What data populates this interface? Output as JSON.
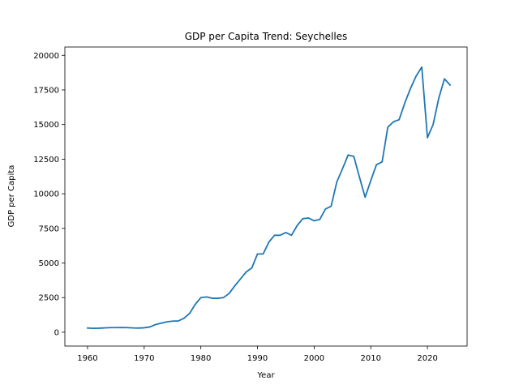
{
  "chart_data": {
    "type": "line",
    "title": "GDP per Capita Trend: Seychelles",
    "xlabel": "Year",
    "ylabel": "GDP per Capita",
    "xlim": [
      1956,
      2027
    ],
    "ylim": [
      -1000,
      20600
    ],
    "xticks": [
      1960,
      1970,
      1980,
      1990,
      2000,
      2010,
      2020
    ],
    "yticks": [
      0,
      2500,
      5000,
      7500,
      10000,
      12500,
      15000,
      17500,
      20000
    ],
    "grid": false,
    "line_color": "#1f77b4",
    "series": [
      {
        "x": [
          1960,
          1961,
          1962,
          1963,
          1964,
          1965,
          1966,
          1967,
          1968,
          1969,
          1970,
          1971,
          1972,
          1973,
          1974,
          1975,
          1976,
          1977,
          1978,
          1979,
          1980,
          1981,
          1982,
          1983,
          1984,
          1985,
          1986,
          1987,
          1988,
          1989,
          1990,
          1991,
          1992,
          1993,
          1994,
          1995,
          1996,
          1997,
          1998,
          1999,
          2000,
          2001,
          2002,
          2003,
          2004,
          2005,
          2006,
          2007,
          2008,
          2009,
          2010,
          2011,
          2012,
          2013,
          2014,
          2015,
          2016,
          2017,
          2018,
          2019,
          2020,
          2021,
          2022,
          2023,
          2024
        ],
        "values": [
          300,
          280,
          290,
          310,
          330,
          330,
          340,
          330,
          310,
          300,
          320,
          380,
          550,
          650,
          750,
          800,
          810,
          1000,
          1350,
          2000,
          2500,
          2550,
          2450,
          2450,
          2500,
          2800,
          3350,
          3850,
          4350,
          4650,
          5650,
          5650,
          6500,
          7000,
          7000,
          7200,
          7000,
          7700,
          8200,
          8250,
          8050,
          8150,
          8900,
          9100,
          10850,
          11800,
          12800,
          12700,
          11200,
          9750,
          10950,
          12100,
          12300,
          14800,
          15200,
          15350,
          16550,
          17600,
          18500,
          19150,
          14050,
          15000,
          16900,
          18300,
          17850
        ]
      }
    ]
  }
}
